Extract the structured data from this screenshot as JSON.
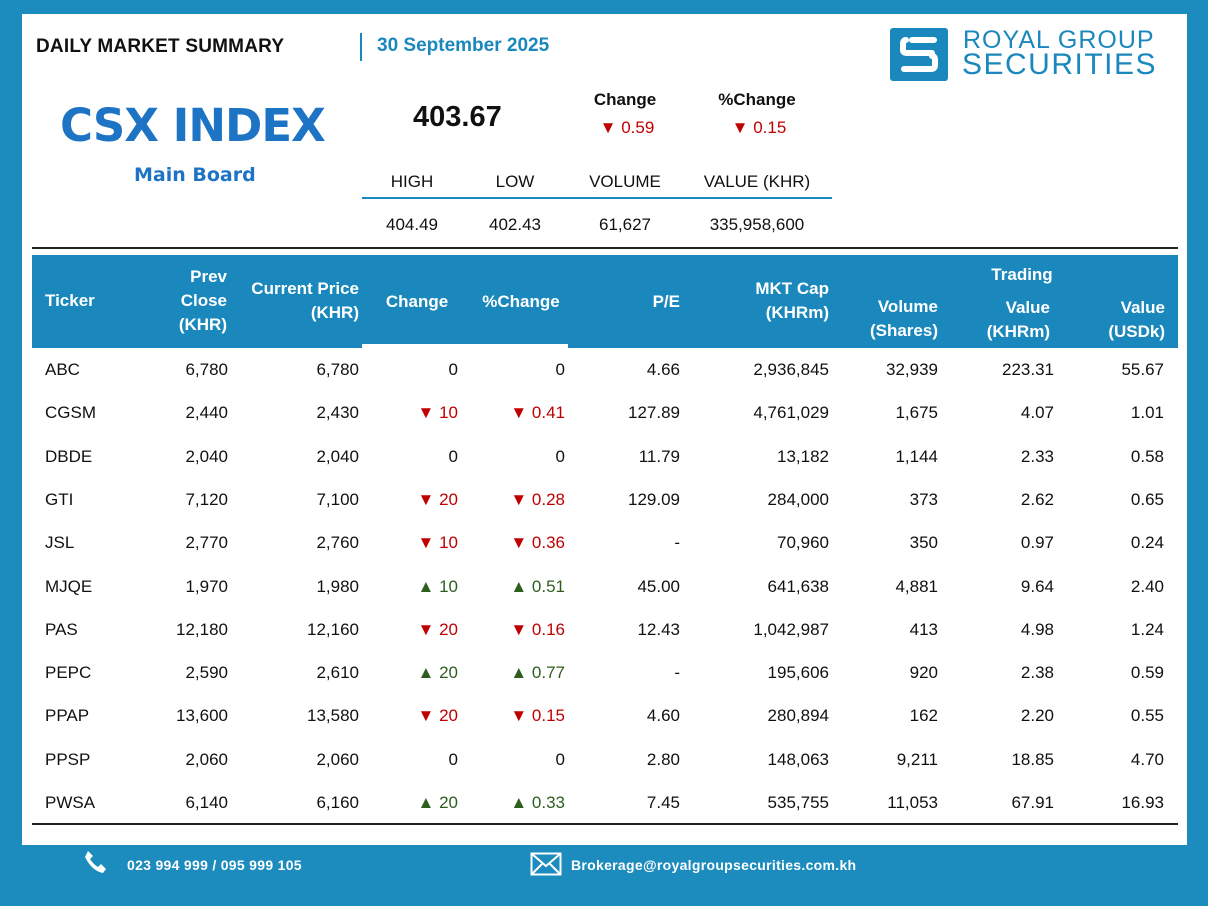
{
  "header": {
    "title": "DAILY MARKET SUMMARY",
    "date": "30 September 2025"
  },
  "logo": {
    "line1": "ROYAL GROUP",
    "line2": "SECURITIES",
    "icon": "royal-group-logo-icon"
  },
  "index": {
    "name": "CSX INDEX",
    "board": "Main Board",
    "value": "403.67",
    "change_label": "Change",
    "change_value": "▼ 0.59",
    "pct_change_label": "%Change",
    "pct_change_value": "▼ 0.15",
    "stats": {
      "high_label": "HIGH",
      "high": "404.49",
      "low_label": "LOW",
      "low": "402.43",
      "volume_label": "VOLUME",
      "volume": "61,627",
      "value_label": "VALUE (KHR)",
      "value": "335,958,600"
    }
  },
  "table": {
    "headers": {
      "ticker": "Ticker",
      "prev_close": [
        "Prev",
        "Close",
        "(KHR)"
      ],
      "current_price": [
        "Current Price",
        "(KHR)"
      ],
      "change": "Change",
      "pct_change": "%Change",
      "pe": "P/E",
      "mkt_cap": [
        "MKT Cap",
        "(KHRm)"
      ],
      "volume": [
        "Volume",
        "(Shares)"
      ],
      "trading": "Trading",
      "value_khr": [
        "Value",
        "(KHRm)"
      ],
      "value_usd": [
        "Value",
        "(USDk)"
      ]
    },
    "rows": [
      {
        "ticker": "ABC",
        "prev": "6,780",
        "cur": "6,780",
        "chg": "0",
        "pct": "0",
        "dir": "none",
        "pe": "4.66",
        "cap": "2,936,845",
        "vol": "32,939",
        "vkhr": "223.31",
        "vusd": "55.67"
      },
      {
        "ticker": "CGSM",
        "prev": "2,440",
        "cur": "2,430",
        "chg": "▼ 10",
        "pct": "▼ 0.41",
        "dir": "down",
        "pe": "127.89",
        "cap": "4,761,029",
        "vol": "1,675",
        "vkhr": "4.07",
        "vusd": "1.01"
      },
      {
        "ticker": "DBDE",
        "prev": "2,040",
        "cur": "2,040",
        "chg": "0",
        "pct": "0",
        "dir": "none",
        "pe": "11.79",
        "cap": "13,182",
        "vol": "1,144",
        "vkhr": "2.33",
        "vusd": "0.58"
      },
      {
        "ticker": "GTI",
        "prev": "7,120",
        "cur": "7,100",
        "chg": "▼ 20",
        "pct": "▼ 0.28",
        "dir": "down",
        "pe": "129.09",
        "cap": "284,000",
        "vol": "373",
        "vkhr": "2.62",
        "vusd": "0.65"
      },
      {
        "ticker": "JSL",
        "prev": "2,770",
        "cur": "2,760",
        "chg": "▼ 10",
        "pct": "▼ 0.36",
        "dir": "down",
        "pe": "-",
        "cap": "70,960",
        "vol": "350",
        "vkhr": "0.97",
        "vusd": "0.24"
      },
      {
        "ticker": "MJQE",
        "prev": "1,970",
        "cur": "1,980",
        "chg": "▲ 10",
        "pct": "▲ 0.51",
        "dir": "up",
        "pe": "45.00",
        "cap": "641,638",
        "vol": "4,881",
        "vkhr": "9.64",
        "vusd": "2.40"
      },
      {
        "ticker": "PAS",
        "prev": "12,180",
        "cur": "12,160",
        "chg": "▼ 20",
        "pct": "▼ 0.16",
        "dir": "down",
        "pe": "12.43",
        "cap": "1,042,987",
        "vol": "413",
        "vkhr": "4.98",
        "vusd": "1.24"
      },
      {
        "ticker": "PEPC",
        "prev": "2,590",
        "cur": "2,610",
        "chg": "▲ 20",
        "pct": "▲ 0.77",
        "dir": "up",
        "pe": "-",
        "cap": "195,606",
        "vol": "920",
        "vkhr": "2.38",
        "vusd": "0.59"
      },
      {
        "ticker": "PPAP",
        "prev": "13,600",
        "cur": "13,580",
        "chg": "▼ 20",
        "pct": "▼ 0.15",
        "dir": "down",
        "pe": "4.60",
        "cap": "280,894",
        "vol": "162",
        "vkhr": "2.20",
        "vusd": "0.55"
      },
      {
        "ticker": "PPSP",
        "prev": "2,060",
        "cur": "2,060",
        "chg": "0",
        "pct": "0",
        "dir": "none",
        "pe": "2.80",
        "cap": "148,063",
        "vol": "9,211",
        "vkhr": "18.85",
        "vusd": "4.70"
      },
      {
        "ticker": "PWSA",
        "prev": "6,140",
        "cur": "6,160",
        "chg": "▲ 20",
        "pct": "▲ 0.33",
        "dir": "up",
        "pe": "7.45",
        "cap": "535,755",
        "vol": "11,053",
        "vkhr": "67.91",
        "vusd": "16.93"
      }
    ]
  },
  "footer": {
    "phone": "023 994 999 / 095 999 105",
    "phone_icon": "phone-icon",
    "email": "Brokerage@royalgroupsecurities.com.kh",
    "email_icon": "envelope-icon"
  },
  "colors": {
    "brand_blue": "#1a88bd",
    "index_blue": "#1d74c4",
    "down_red": "#c00000",
    "up_green": "#2e5e1e"
  }
}
